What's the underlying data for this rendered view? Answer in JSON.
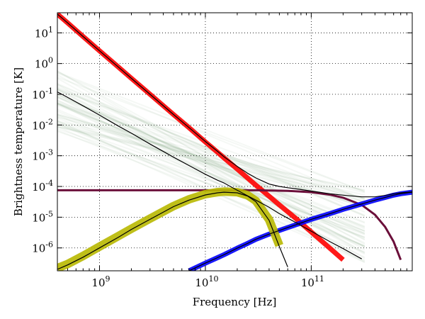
{
  "chart_data": {
    "type": "line",
    "title": "",
    "xlabel": "Frequency [Hz]",
    "ylabel": "Brightness temperature [K]",
    "xscale": "log",
    "yscale": "log",
    "xlim": [
      400000000,
      900000000000
    ],
    "ylim": [
      1.8e-07,
      45
    ],
    "grid": true,
    "legend": "none",
    "x_ticks": [
      {
        "value": 1000000000,
        "base": "10",
        "exp": "9"
      },
      {
        "value": 10000000000,
        "base": "10",
        "exp": "10"
      },
      {
        "value": 100000000000,
        "base": "10",
        "exp": "11"
      }
    ],
    "y_ticks": [
      {
        "value": 1e-06,
        "base": "10",
        "exp": "-6"
      },
      {
        "value": 1e-05,
        "base": "10",
        "exp": "-5"
      },
      {
        "value": 0.0001,
        "base": "10",
        "exp": "-4"
      },
      {
        "value": 0.001,
        "base": "10",
        "exp": "-3"
      },
      {
        "value": 0.01,
        "base": "10",
        "exp": "-2"
      },
      {
        "value": 0.1,
        "base": "10",
        "exp": "-1"
      },
      {
        "value": 1,
        "base": "10",
        "exp": "0"
      },
      {
        "value": 10,
        "base": "10",
        "exp": "1"
      }
    ],
    "x": [
      400000000,
      500000000,
      700000000,
      1000000000,
      1500000000,
      2000000000,
      3000000000,
      5000000000,
      7000000000,
      10000000000,
      13000000000,
      15000000000,
      20000000000,
      25000000000,
      30000000000,
      40000000000,
      50000000000,
      60000000000,
      70000000000,
      100000000000,
      150000000000,
      200000000000,
      300000000000,
      400000000000,
      500000000000,
      600000000000,
      700000000000,
      900000000000
    ],
    "series": [
      {
        "color": "#ff0000",
        "band_width": 7,
        "values": [
          41,
          21,
          7.6,
          2.6,
          0.78,
          0.33,
          0.1,
          0.022,
          0.0082,
          0.0028,
          0.0013,
          0.00085,
          0.00037,
          0.00019,
          0.00011,
          4.8e-05,
          2.5e-05,
          1.5e-05,
          9.7e-06,
          3.3e-06,
          9.8e-07,
          4.1e-07,
          null,
          null,
          null,
          null,
          null,
          null
        ]
      },
      {
        "color": "#6b0f3a",
        "band_width": 3,
        "values": [
          7.5e-05,
          7.5e-05,
          7.5e-05,
          7.5e-05,
          7.5e-05,
          7.5e-05,
          7.5e-05,
          7.5e-05,
          7.5e-05,
          7.5e-05,
          7.5e-05,
          7.5e-05,
          7.5e-05,
          7.5e-05,
          7.5e-05,
          7.4e-05,
          7.3e-05,
          7.2e-05,
          7e-05,
          6.5e-05,
          5.4e-05,
          4.3e-05,
          2.5e-05,
          1.2e-05,
          4.8e-06,
          1.6e-06,
          4.1e-07,
          null
        ]
      },
      {
        "color": "#0000ff",
        "band_width": 7,
        "values": [
          null,
          null,
          null,
          null,
          null,
          null,
          null,
          null,
          1.8e-07,
          3.2e-07,
          4.8e-07,
          6e-07,
          9.8e-07,
          1.4e-06,
          1.9e-06,
          2.8e-06,
          3.7e-06,
          4.6e-06,
          5.5e-06,
          8.5e-06,
          1.3e-05,
          1.8e-05,
          2.7e-05,
          3.6e-05,
          4.4e-05,
          5.2e-05,
          5.8e-05,
          6.5e-05
        ]
      },
      {
        "color": "#b8b800",
        "band_width": 12,
        "values": [
          2.2e-07,
          3e-07,
          5.5e-07,
          1.1e-06,
          2.4e-06,
          4.2e-06,
          9e-06,
          2.3e-05,
          3.8e-05,
          5.6e-05,
          6.5e-05,
          6.8e-05,
          6.5e-05,
          5.2e-05,
          3.4e-05,
          8.3e-06,
          1.2e-06,
          null,
          null,
          null,
          null,
          null,
          null,
          null,
          null,
          null,
          null,
          null
        ]
      },
      {
        "color": "#000000",
        "band_width": 1.2,
        "values": [
          0.12,
          0.079,
          0.042,
          0.021,
          0.0093,
          0.0054,
          0.0024,
          0.0009,
          0.00048,
          0.00025,
          0.00016,
          0.00013,
          7.5e-05,
          5e-05,
          3.6e-05,
          2.1e-05,
          1.3e-05,
          9.3e-06,
          7e-06,
          3.5e-06,
          1.6e-06,
          9.5e-07,
          4.4e-07,
          null,
          null,
          null,
          null,
          null
        ]
      },
      {
        "color": "#000000",
        "band_width": 1.2,
        "values": [
          41,
          21,
          7.6,
          2.6,
          0.78,
          0.33,
          0.1,
          0.022,
          0.0083,
          0.0029,
          0.0014,
          0.00093,
          0.00045,
          0.00027,
          0.00019,
          0.00012,
          0.0001,
          9.1e-05,
          8.5e-05,
          7.1e-05,
          5.8e-05,
          5.2e-05,
          4.6e-05,
          4.6e-05,
          5.1e-05,
          5.8e-05,
          6.2e-05,
          6.7e-05
        ]
      },
      {
        "color": "#000000",
        "band_width": 1.2,
        "values": [
          2e-07,
          2.8e-07,
          5e-07,
          1e-06,
          2.2e-06,
          4e-06,
          8.5e-06,
          2.2e-05,
          3.6e-05,
          5.3e-05,
          6.2e-05,
          6.5e-05,
          6.2e-05,
          4.9e-05,
          3.2e-05,
          7.9e-06,
          1.1e-06,
          2.4e-07,
          null,
          null,
          null,
          null,
          null,
          null,
          null,
          null,
          null,
          null
        ]
      },
      {
        "color": "#000000",
        "band_width": 1.2,
        "values": [
          null,
          null,
          null,
          null,
          null,
          null,
          null,
          null,
          1.8e-07,
          3.2e-07,
          4.8e-07,
          6e-07,
          9.8e-07,
          1.4e-06,
          1.9e-06,
          2.8e-06,
          3.7e-06,
          4.6e-06,
          5.5e-06,
          8.5e-06,
          1.3e-05,
          1.8e-05,
          2.7e-05,
          3.6e-05,
          4.4e-05,
          5.2e-05,
          5.8e-05,
          6.5e-05
        ]
      }
    ],
    "uncertainty_band": {
      "color": "#4f8f4f",
      "spread": [
        0.006,
        0.7,
        3e-07,
        8e-05
      ]
    }
  }
}
